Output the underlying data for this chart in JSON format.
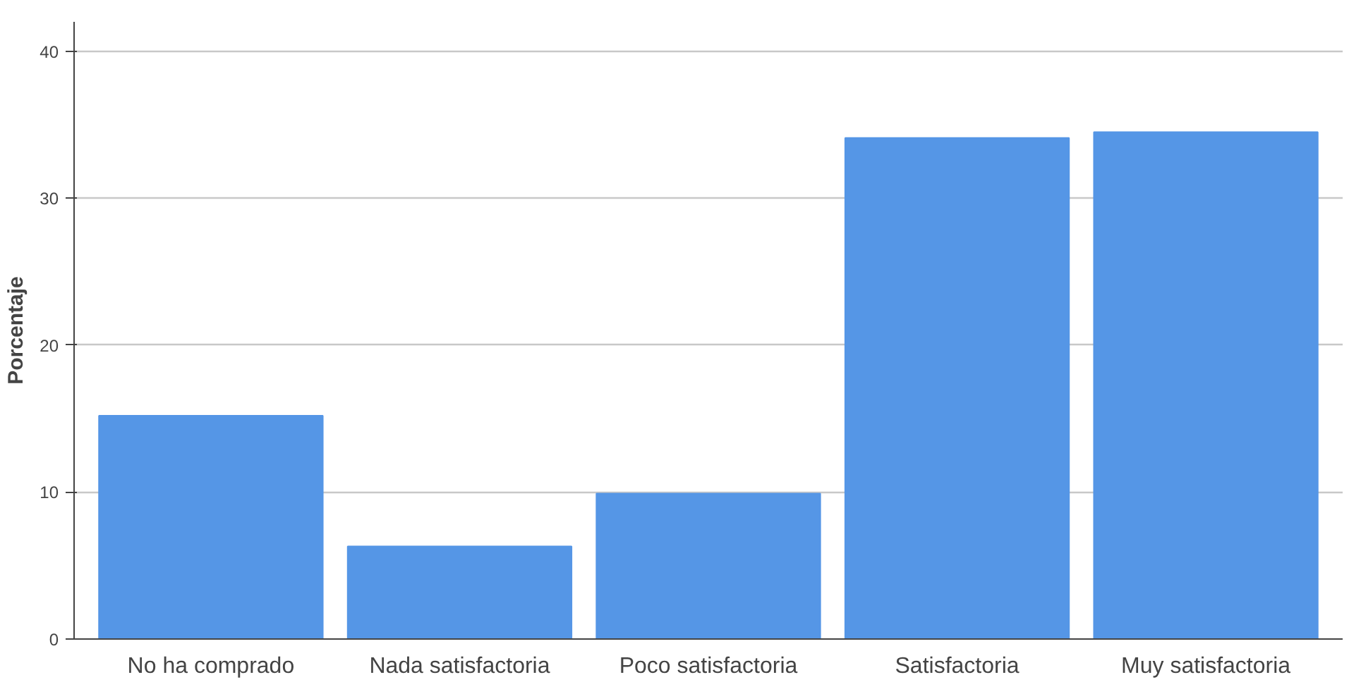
{
  "chart_data": {
    "type": "bar",
    "ylabel": "Porcentaje",
    "categories": [
      "No ha comprado",
      "Nada satisfactoria",
      "Poco satisfactoria",
      "Satisfactoria",
      "Muy satisfactoria"
    ],
    "values": [
      15.2,
      6.3,
      9.9,
      34.1,
      34.5
    ],
    "color": "#5596e6",
    "ylim": [
      0,
      42
    ],
    "yticks": [
      0,
      10,
      20,
      30,
      40
    ],
    "grid": "y"
  }
}
